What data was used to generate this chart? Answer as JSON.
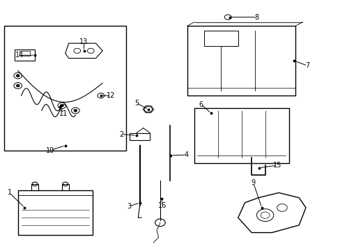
{
  "background_color": "#ffffff",
  "line_color": "#000000",
  "text_color": "#000000",
  "fig_width": 4.89,
  "fig_height": 3.6,
  "dpi": 100
}
